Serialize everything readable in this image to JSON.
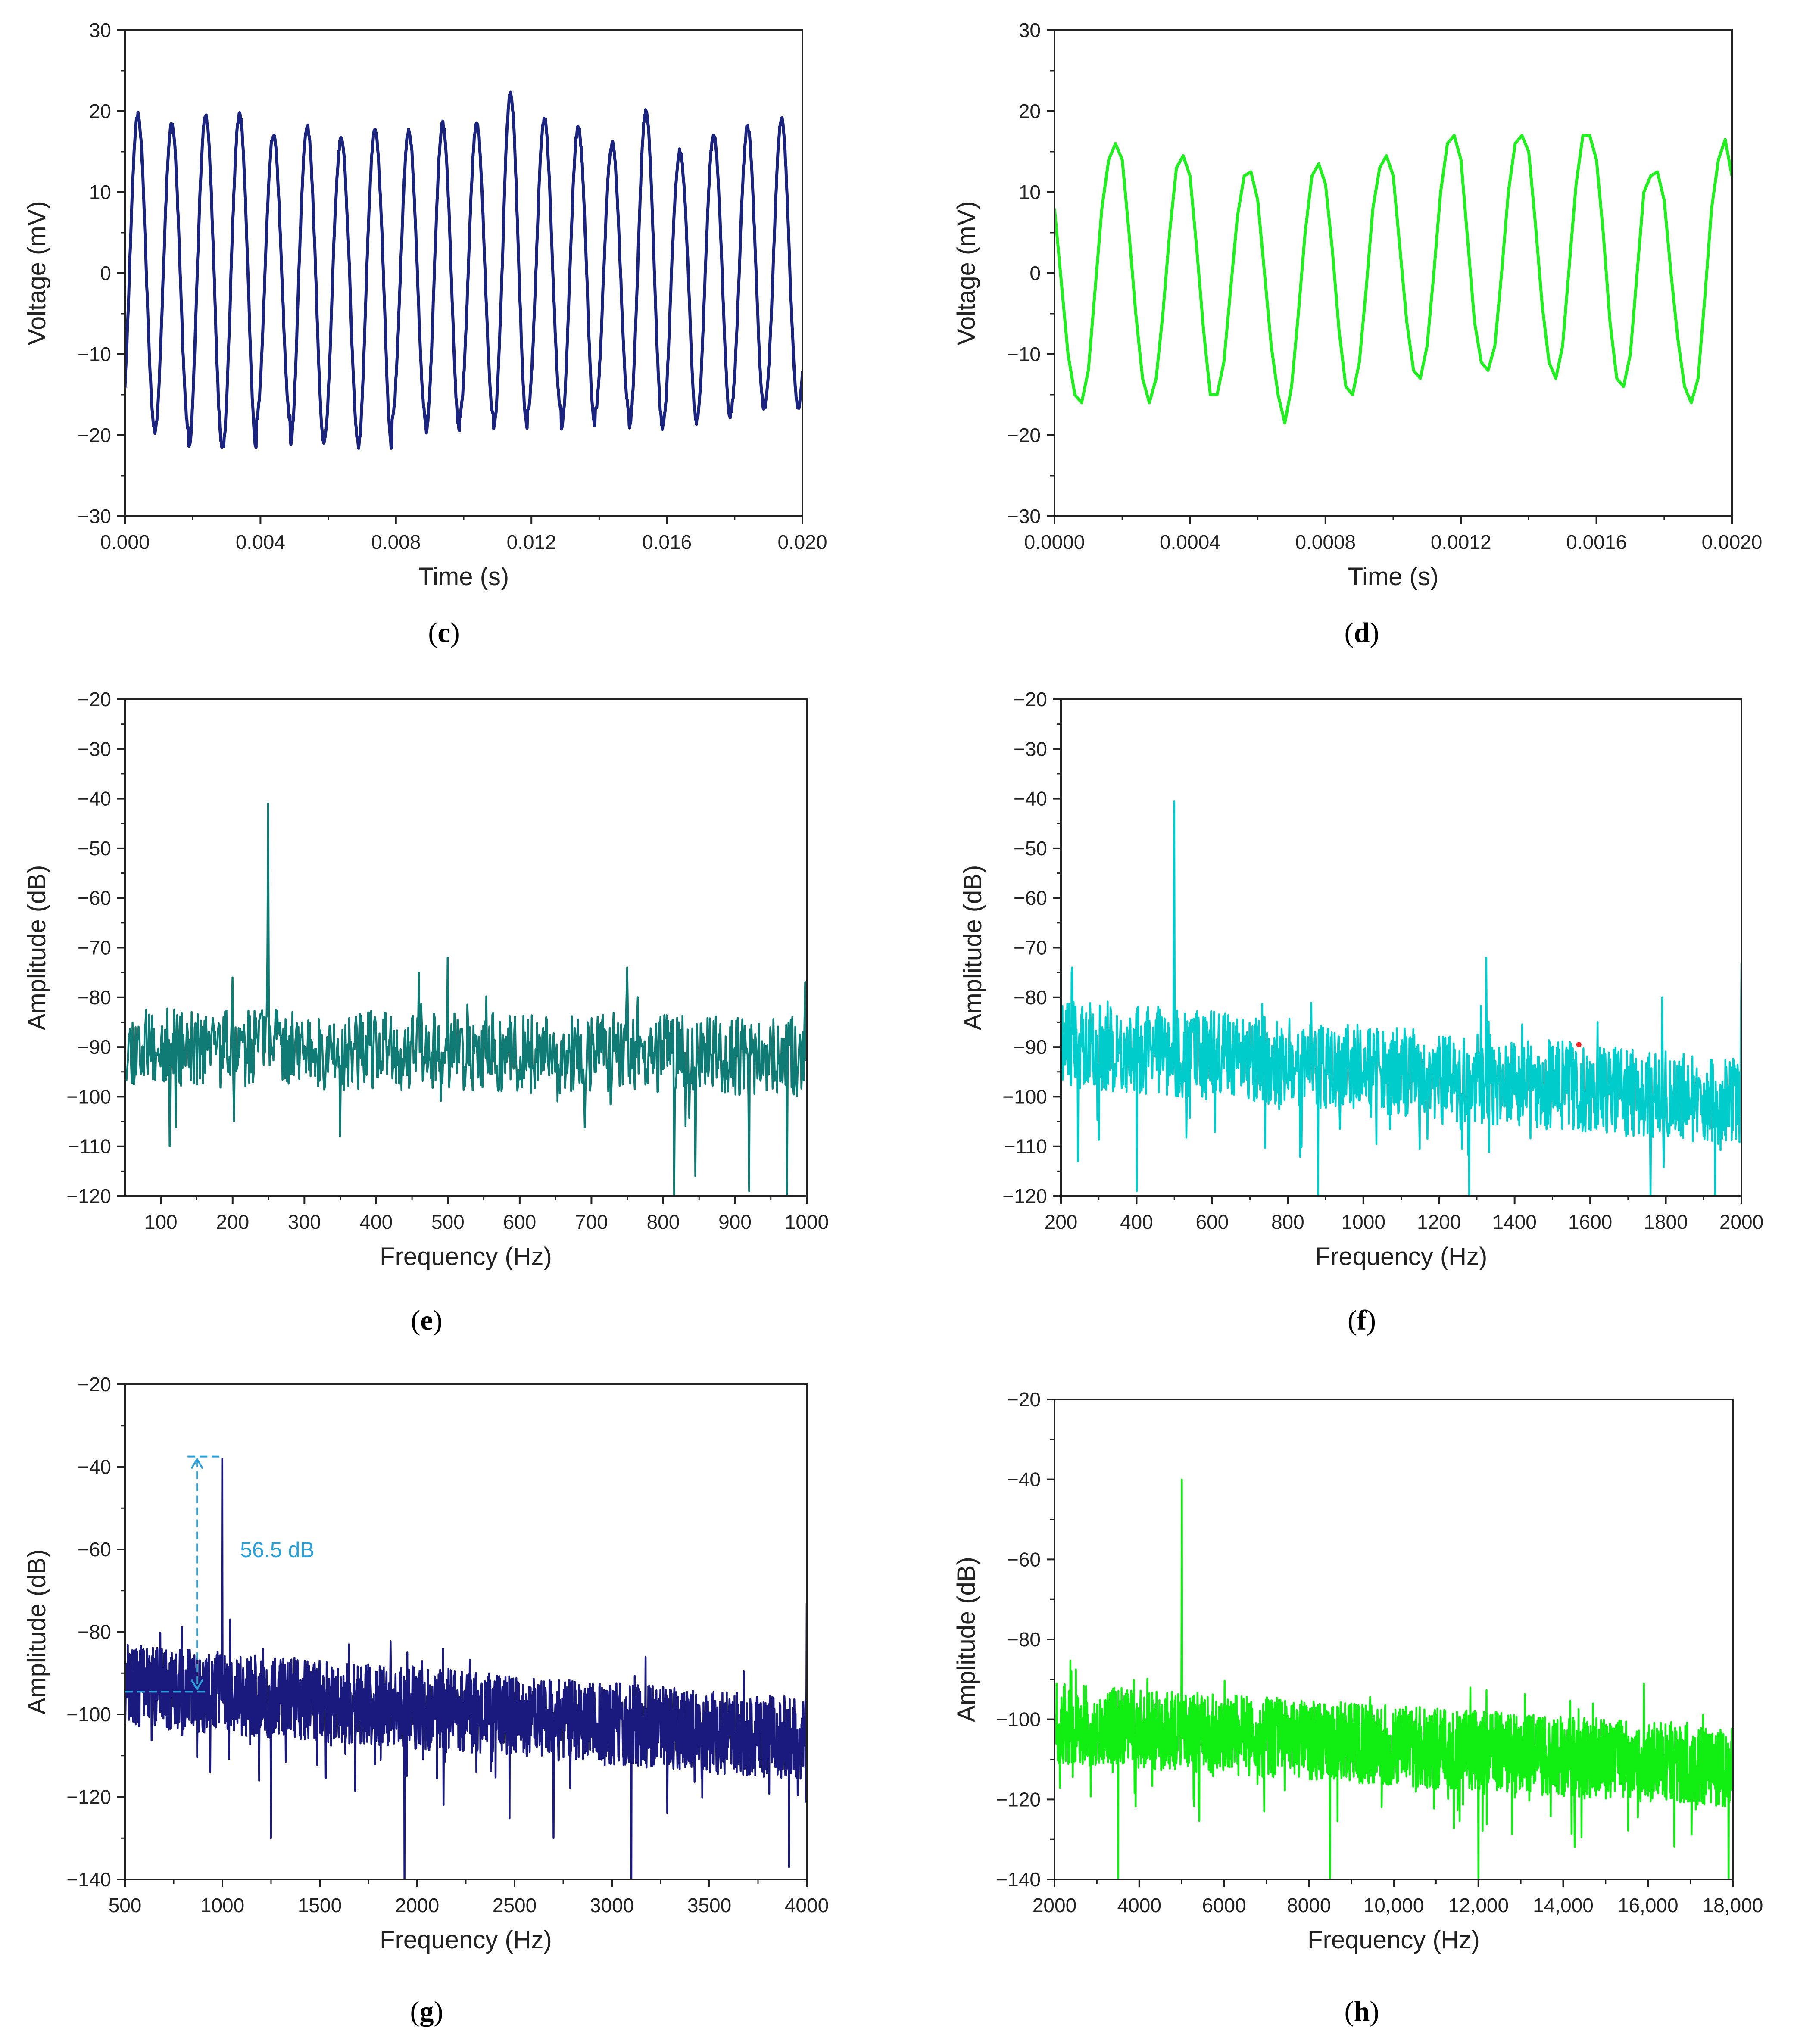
{
  "chart_data": [
    {
      "id": "c",
      "type": "line",
      "panel_label": "c",
      "xlabel": "Time (s)",
      "ylabel": "Voltage (mV)",
      "xlim": [
        0,
        0.02
      ],
      "ylim": [
        -30,
        30
      ],
      "xticks": [
        0,
        0.004,
        0.008,
        0.012,
        0.016,
        0.02
      ],
      "xtick_labels": [
        "0.000",
        "0.004",
        "0.008",
        "0.012",
        "0.016",
        "0.020"
      ],
      "yticks": [
        -30,
        -20,
        -10,
        0,
        10,
        20,
        30
      ],
      "ytick_labels": [
        "−30",
        "−20",
        "−10",
        "0",
        "10",
        "20",
        "30"
      ],
      "color": "#1a237e",
      "signal": {
        "kind": "sine",
        "frequency_hz": 1000,
        "amplitude_mv": 19,
        "start_value_mv": -14,
        "samples": 1400,
        "peaks_mv": [
          19.5,
          18.5,
          19.5,
          19.5,
          17,
          18,
          16.5,
          17.5,
          17.5,
          18.5,
          18.5,
          22,
          19,
          18,
          16,
          20,
          15,
          17,
          18,
          19
        ],
        "troughs_mv": [
          -19,
          -19.5,
          -21.5,
          -21.5,
          -18,
          -21,
          -20.5,
          -21.5,
          -18,
          -19.5,
          -17.5,
          -19,
          -17,
          -19,
          -17,
          -19,
          -18.5,
          -18,
          -17,
          -16.5
        ]
      }
    },
    {
      "id": "d",
      "type": "line",
      "panel_label": "d",
      "xlabel": "Time (s)",
      "ylabel": "Voltage (mV)",
      "xlim": [
        0,
        0.002
      ],
      "ylim": [
        -30,
        30
      ],
      "xticks": [
        0,
        0.0004,
        0.0008,
        0.0012,
        0.0016,
        0.002
      ],
      "xtick_labels": [
        "0.0000",
        "0.0004",
        "0.0008",
        "0.0012",
        "0.0016",
        "0.0020"
      ],
      "yticks": [
        -30,
        -20,
        -10,
        0,
        10,
        20,
        30
      ],
      "ytick_labels": [
        "−30",
        "−20",
        "−10",
        "0",
        "10",
        "20",
        "30"
      ],
      "color": "#22ee22",
      "signal": {
        "kind": "sampled-sine",
        "x": [
          0,
          2e-05,
          4e-05,
          6e-05,
          8e-05,
          0.0001,
          0.00012,
          0.00014,
          0.00016,
          0.00018,
          0.0002,
          0.00022,
          0.00024,
          0.00026,
          0.00028,
          0.0003,
          0.00032,
          0.00034,
          0.00036,
          0.00038,
          0.0004,
          0.00042,
          0.00044,
          0.00046,
          0.00048,
          0.0005,
          0.00052,
          0.00054,
          0.00056,
          0.00058,
          0.0006,
          0.00062,
          0.00064,
          0.00066,
          0.00068,
          0.0007,
          0.00072,
          0.00074,
          0.00076,
          0.00078,
          0.0008,
          0.00082,
          0.00084,
          0.00086,
          0.00088,
          0.0009,
          0.00092,
          0.00094,
          0.00096,
          0.00098,
          0.001,
          0.00102,
          0.00104,
          0.00106,
          0.00108,
          0.0011,
          0.00112,
          0.00114,
          0.00116,
          0.00118,
          0.0012,
          0.00122,
          0.00124,
          0.00126,
          0.00128,
          0.0013,
          0.00132,
          0.00134,
          0.00136,
          0.00138,
          0.0014,
          0.00142,
          0.00144,
          0.00146,
          0.00148,
          0.0015,
          0.00152,
          0.00154,
          0.00156,
          0.00158,
          0.0016,
          0.00162,
          0.00164,
          0.00166,
          0.00168,
          0.0017,
          0.00172,
          0.00174,
          0.00176,
          0.00178,
          0.0018,
          0.00182,
          0.00184,
          0.00186,
          0.00188,
          0.0019,
          0.00192,
          0.00194,
          0.00196,
          0.00198,
          0.002
        ],
        "y": [
          8,
          -1,
          -10,
          -15,
          -16,
          -12,
          -2,
          8,
          14,
          16,
          14,
          5,
          -5,
          -13,
          -16,
          -13,
          -5,
          5,
          13,
          14.5,
          12,
          3,
          -7,
          -15,
          -15,
          -11,
          -2,
          7,
          12,
          12.5,
          9,
          0,
          -9,
          -15,
          -18.5,
          -14,
          -5,
          5,
          12,
          13.5,
          11,
          3,
          -7,
          -14,
          -15,
          -11,
          -2,
          8,
          13,
          14.5,
          12,
          3,
          -6,
          -12,
          -13,
          -9,
          0,
          10,
          16,
          17,
          14,
          4,
          -6,
          -11,
          -12,
          -9,
          0,
          10,
          16,
          17,
          15,
          6,
          -4,
          -11,
          -13,
          -9,
          1,
          11,
          17,
          17,
          14,
          5,
          -6,
          -13,
          -14,
          -10,
          0,
          10,
          12,
          12.5,
          9,
          0,
          -8,
          -14,
          -16,
          -13,
          -3,
          8,
          14,
          16.5,
          12
        ]
      }
    },
    {
      "id": "e",
      "type": "line",
      "panel_label": "e",
      "xlabel": "Frequency (Hz)",
      "ylabel": "Amplitude (dB)",
      "xlim": [
        50,
        1000
      ],
      "ylim": [
        -120,
        -20
      ],
      "xticks": [
        100,
        200,
        300,
        400,
        500,
        600,
        700,
        800,
        900,
        1000
      ],
      "xtick_labels": [
        "100",
        "200",
        "300",
        "400",
        "500",
        "600",
        "700",
        "800",
        "900",
        "1000"
      ],
      "yticks": [
        -120,
        -110,
        -100,
        -90,
        -80,
        -70,
        -60,
        -50,
        -40,
        -30,
        -20
      ],
      "ytick_labels": [
        "−120",
        "−110",
        "−100",
        "−90",
        "−80",
        "−70",
        "−60",
        "−50",
        "−40",
        "−30",
        "−20"
      ],
      "color": "#0f7b74",
      "spectrum": {
        "points": 900,
        "noise_floor_start_db": -90,
        "noise_floor_end_db": -92,
        "noise_spread_db": 8,
        "seed": 11,
        "peaks": [
          {
            "x": 250,
            "y": -41
          },
          {
            "x": 500,
            "y": -72
          },
          {
            "x": 750,
            "y": -74
          },
          {
            "x": 460,
            "y": -75
          },
          {
            "x": 200,
            "y": -76
          },
          {
            "x": 998,
            "y": -77
          }
        ],
        "dips": [
          {
            "x": 815,
            "y": -120
          },
          {
            "x": 973,
            "y": -120
          },
          {
            "x": 920,
            "y": -119
          },
          {
            "x": 845,
            "y": -116
          }
        ]
      }
    },
    {
      "id": "f",
      "type": "line",
      "panel_label": "f",
      "xlabel": "Frequency (Hz)",
      "ylabel": "Amplitude (dB)",
      "xlim": [
        200,
        2000
      ],
      "ylim": [
        -120,
        -20
      ],
      "xticks": [
        200,
        400,
        600,
        800,
        1000,
        1200,
        1400,
        1600,
        1800,
        2000
      ],
      "xtick_labels": [
        "200",
        "400",
        "600",
        "800",
        "1000",
        "1200",
        "1400",
        "1600",
        "1800",
        "2000"
      ],
      "yticks": [
        -120,
        -110,
        -100,
        -90,
        -80,
        -70,
        -60,
        -50,
        -40,
        -30,
        -20
      ],
      "ytick_labels": [
        "−120",
        "−110",
        "−100",
        "−90",
        "−80",
        "−70",
        "−60",
        "−50",
        "−40",
        "−30",
        "−20"
      ],
      "color": "#00cccc",
      "spectrum": {
        "points": 1400,
        "noise_floor_start_db": -89,
        "noise_floor_end_db": -101,
        "noise_spread_db": 9,
        "seed": 23,
        "peaks": [
          {
            "x": 500,
            "y": -40.5
          },
          {
            "x": 1325,
            "y": -72
          },
          {
            "x": 2000,
            "y": -73
          },
          {
            "x": 1790,
            "y": -80
          },
          {
            "x": 1620,
            "y": -85
          },
          {
            "x": 230,
            "y": -74
          }
        ],
        "dips": [
          {
            "x": 400,
            "y": -119
          },
          {
            "x": 245,
            "y": -113
          },
          {
            "x": 880,
            "y": -120
          },
          {
            "x": 1280,
            "y": -120
          },
          {
            "x": 1760,
            "y": -120
          },
          {
            "x": 1930,
            "y": -120
          }
        ],
        "marker": {
          "x": 1570,
          "y": -89.5,
          "color": "#ff2222"
        }
      }
    },
    {
      "id": "g",
      "type": "line",
      "panel_label": "g",
      "xlabel": "Frequency (Hz)",
      "ylabel": "Amplitude (dB)",
      "xlim": [
        500,
        4000
      ],
      "ylim": [
        -140,
        -20
      ],
      "xticks": [
        500,
        1000,
        1500,
        2000,
        2500,
        3000,
        3500,
        4000
      ],
      "xtick_labels": [
        "500",
        "1000",
        "1500",
        "2000",
        "2500",
        "3000",
        "3500",
        "4000"
      ],
      "yticks": [
        -140,
        -120,
        -100,
        -80,
        -60,
        -40,
        -20
      ],
      "ytick_labels": [
        "−140",
        "−120",
        "−100",
        "−80",
        "−60",
        "−40",
        "−20"
      ],
      "color": "#1a1a7e",
      "spectrum": {
        "points": 2200,
        "noise_floor_start_db": -93,
        "noise_floor_end_db": -106,
        "noise_spread_db": 10,
        "seed": 37,
        "peaks": [
          {
            "x": 1000,
            "y": -38
          },
          {
            "x": 4000,
            "y": -73
          },
          {
            "x": 1040,
            "y": -77
          },
          {
            "x": 1950,
            "y": -85
          },
          {
            "x": 1650,
            "y": -83
          },
          {
            "x": 1300,
            "y": -88
          }
        ],
        "dips": [
          {
            "x": 1935,
            "y": -140
          },
          {
            "x": 3100,
            "y": -140
          },
          {
            "x": 3910,
            "y": -137
          },
          {
            "x": 1250,
            "y": -130
          },
          {
            "x": 2700,
            "y": -130
          }
        ]
      },
      "annotation": {
        "text": "56.5 dB",
        "color": "#2a9fd8",
        "top_db": -37.5,
        "bottom_db": -94.5,
        "arrow_x_hz": 870
      }
    },
    {
      "id": "h",
      "type": "line",
      "panel_label": "h",
      "xlabel": "Frequency (Hz)",
      "ylabel": "Amplitude (dB)",
      "xlim": [
        2000,
        18000
      ],
      "ylim": [
        -140,
        -20
      ],
      "xticks": [
        2000,
        4000,
        6000,
        8000,
        10000,
        12000,
        14000,
        16000,
        18000
      ],
      "xtick_labels": [
        "2000",
        "4000",
        "6000",
        "8000",
        "10,000",
        "12,000",
        "14,000",
        "16,000",
        "18,000"
      ],
      "yticks": [
        -140,
        -120,
        -100,
        -80,
        -60,
        -40,
        -20
      ],
      "ytick_labels": [
        "−140",
        "−120",
        "−100",
        "−80",
        "−60",
        "−40",
        "−20"
      ],
      "color": "#11ee11",
      "spectrum": {
        "points": 2600,
        "noise_floor_start_db": -101,
        "noise_floor_end_db": -112,
        "noise_spread_db": 10,
        "seed": 51,
        "peaks": [
          {
            "x": 5000,
            "y": -40
          },
          {
            "x": 15900,
            "y": -91
          },
          {
            "x": 2400,
            "y": -88
          },
          {
            "x": 14700,
            "y": -96
          }
        ],
        "dips": [
          {
            "x": 3500,
            "y": -140
          },
          {
            "x": 8500,
            "y": -140
          },
          {
            "x": 12000,
            "y": -140
          },
          {
            "x": 17900,
            "y": -140
          }
        ]
      }
    }
  ]
}
